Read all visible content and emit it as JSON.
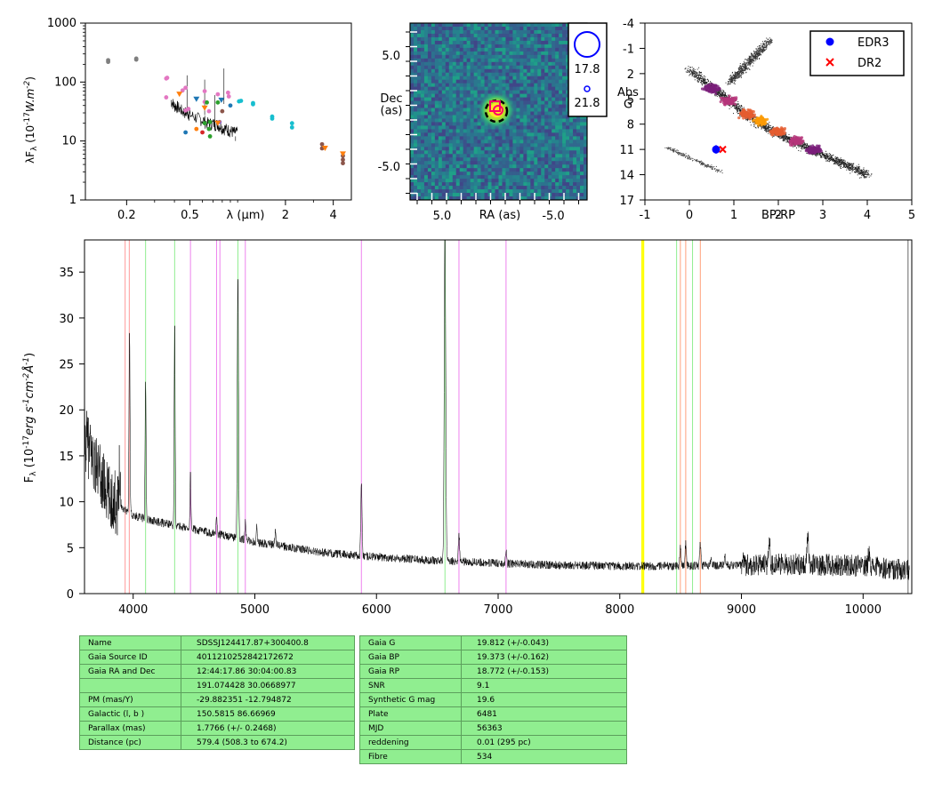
{
  "chart_data": [
    {
      "type": "scatter",
      "name": "sed",
      "xlabel": "λ (μm)",
      "ylabel": "λF_λ (10^-17 W.m^-2)",
      "xscale": "log",
      "yscale": "log",
      "xlim": [
        0.11,
        5.2
      ],
      "ylim": [
        1,
        1000
      ],
      "x_ticks": [
        0.2,
        0.5,
        2,
        4
      ],
      "y_ticks": [
        1,
        10,
        100,
        1000
      ],
      "points": [
        {
          "x": 0.153,
          "y": 220,
          "color": "#7f7f7f"
        },
        {
          "x": 0.153,
          "y": 235,
          "color": "#7f7f7f"
        },
        {
          "x": 0.23,
          "y": 240,
          "color": "#7f7f7f"
        },
        {
          "x": 0.23,
          "y": 250,
          "color": "#7f7f7f"
        },
        {
          "x": 0.355,
          "y": 115,
          "color": "#e377c2"
        },
        {
          "x": 0.355,
          "y": 55,
          "color": "#e377c2"
        },
        {
          "x": 0.36,
          "y": 118,
          "color": "#e377c2"
        },
        {
          "x": 0.45,
          "y": 72,
          "color": "#e377c2"
        },
        {
          "x": 0.47,
          "y": 80,
          "color": "#e377c2"
        },
        {
          "x": 0.47,
          "y": 33,
          "color": "#e377c2"
        },
        {
          "x": 0.49,
          "y": 35,
          "color": "#e377c2"
        },
        {
          "x": 0.62,
          "y": 70,
          "color": "#e377c2"
        },
        {
          "x": 0.62,
          "y": 46,
          "color": "#e377c2"
        },
        {
          "x": 0.66,
          "y": 32,
          "color": "#e377c2"
        },
        {
          "x": 0.75,
          "y": 62,
          "color": "#e377c2"
        },
        {
          "x": 0.87,
          "y": 66,
          "color": "#e377c2"
        },
        {
          "x": 0.88,
          "y": 57,
          "color": "#e377c2"
        },
        {
          "x": 0.47,
          "y": 14,
          "color": "#1f77b4"
        },
        {
          "x": 0.55,
          "y": 16,
          "color": "#ff7f0e"
        },
        {
          "x": 0.6,
          "y": 14,
          "color": "#d62728"
        },
        {
          "x": 0.62,
          "y": 20,
          "color": "#2ca02c"
        },
        {
          "x": 0.66,
          "y": 16,
          "color": "#2ca02c"
        },
        {
          "x": 0.67,
          "y": 12,
          "color": "#2ca02c"
        },
        {
          "x": 0.67,
          "y": 21,
          "color": "#2ca02c"
        },
        {
          "x": 0.64,
          "y": 45,
          "color": "#2ca02c"
        },
        {
          "x": 0.75,
          "y": 45,
          "color": "#2ca02c"
        },
        {
          "x": 0.77,
          "y": 21,
          "color": "#9467bd"
        },
        {
          "x": 0.8,
          "y": 32,
          "color": "#8c564b"
        },
        {
          "x": 0.9,
          "y": 40,
          "color": "#1f77b4"
        },
        {
          "x": 1.02,
          "y": 47,
          "color": "#17becf"
        },
        {
          "x": 1.05,
          "y": 48,
          "color": "#17becf"
        },
        {
          "x": 1.25,
          "y": 44,
          "color": "#17becf"
        },
        {
          "x": 1.25,
          "y": 42,
          "color": "#17becf"
        },
        {
          "x": 1.65,
          "y": 26,
          "color": "#17becf"
        },
        {
          "x": 1.65,
          "y": 24,
          "color": "#17becf"
        },
        {
          "x": 2.2,
          "y": 20,
          "color": "#17becf"
        },
        {
          "x": 2.2,
          "y": 17,
          "color": "#17becf"
        },
        {
          "x": 3.4,
          "y": 8.8,
          "color": "#8c564b"
        },
        {
          "x": 3.4,
          "y": 7.5,
          "color": "#8c564b"
        },
        {
          "x": 4.6,
          "y": 5.6,
          "color": "#8c564b"
        },
        {
          "x": 4.6,
          "y": 4.8,
          "color": "#8c564b"
        },
        {
          "x": 4.6,
          "y": 4.2,
          "color": "#8c564b"
        }
      ],
      "upper_limits": [
        {
          "x": 0.43,
          "y": 62,
          "color": "#ff7f0e"
        },
        {
          "x": 0.62,
          "y": 36,
          "color": "#ff7f0e"
        },
        {
          "x": 0.75,
          "y": 20,
          "color": "#ff7f0e"
        },
        {
          "x": 3.55,
          "y": 7.5,
          "color": "#ff7f0e"
        },
        {
          "x": 4.6,
          "y": 6,
          "color": "#ff7f0e"
        },
        {
          "x": 0.55,
          "y": 51,
          "color": "#1f77b4"
        },
        {
          "x": 0.79,
          "y": 49,
          "color": "#1f77b4"
        }
      ],
      "spectrum_overlay": {
        "x": [
          0.38,
          0.4,
          0.42,
          0.45,
          0.48,
          0.5,
          0.55,
          0.6,
          0.65,
          0.7,
          0.75,
          0.8,
          0.85,
          0.9,
          0.95,
          1.0
        ],
        "y": [
          48,
          40,
          38,
          32,
          30,
          28,
          25,
          23,
          20,
          20,
          19,
          17,
          16,
          15,
          14,
          14
        ]
      }
    },
    {
      "type": "heatmap",
      "name": "image",
      "xlabel": "RA (as)",
      "ylabel": "Dec\n(as)",
      "x_ticks": [
        "5.0",
        "-5.0"
      ],
      "y_ticks": [
        "5.0",
        "-5.0"
      ],
      "legend_labels": [
        "17.8",
        "21.8"
      ]
    },
    {
      "type": "scatter",
      "name": "cmd",
      "xlabel": "BP-RP",
      "ylabel": "Abs\nG",
      "xlim": [
        -1,
        5
      ],
      "ylim": [
        17,
        -4
      ],
      "x_ticks": [
        "-1",
        "0",
        "1",
        "2",
        "3",
        "4",
        "5"
      ],
      "y_ticks": [
        "-4",
        "-1",
        "2",
        "5",
        "8",
        "11",
        "14",
        "17"
      ],
      "legend": [
        "EDR3",
        "DR2"
      ],
      "legend_position": "top-right",
      "points": [
        {
          "series": "EDR3",
          "x": 0.6,
          "y": 11.0,
          "marker": "dot",
          "color": "#0000ff"
        },
        {
          "series": "DR2",
          "x": 0.75,
          "y": 11.0,
          "marker": "x",
          "color": "#ff0000"
        }
      ]
    },
    {
      "type": "line",
      "name": "spectrum",
      "xlabel": "",
      "ylabel": "F_λ (10^-17 erg s^-1 cm^-2 Å^-1)",
      "xlim": [
        3600,
        10400
      ],
      "ylim": [
        0,
        38.5
      ],
      "x_ticks": [
        4000,
        5000,
        6000,
        7000,
        8000,
        9000,
        10000
      ],
      "y_ticks": [
        0,
        5,
        10,
        15,
        20,
        25,
        30,
        35
      ],
      "continuum": [
        [
          3600,
          17
        ],
        [
          3800,
          10.5
        ],
        [
          4000,
          8.5
        ],
        [
          4200,
          7.8
        ],
        [
          4500,
          7.0
        ],
        [
          4800,
          6.2
        ],
        [
          5000,
          5.6
        ],
        [
          5300,
          5.0
        ],
        [
          5600,
          4.4
        ],
        [
          6000,
          4.0
        ],
        [
          6500,
          3.6
        ],
        [
          7000,
          3.3
        ],
        [
          7500,
          3.1
        ],
        [
          8000,
          3.0
        ],
        [
          8500,
          3.0
        ],
        [
          9000,
          3.1
        ],
        [
          9500,
          3.2
        ],
        [
          10000,
          3.0
        ],
        [
          10400,
          2.5
        ]
      ],
      "emission_lines": [
        {
          "x": 3889,
          "peak": 5,
          "w": 5
        },
        {
          "x": 3970,
          "peak": 20,
          "w": 4
        },
        {
          "x": 4102,
          "peak": 15,
          "w": 4
        },
        {
          "x": 4341,
          "peak": 22,
          "w": 4
        },
        {
          "x": 4471,
          "peak": 6,
          "w": 4
        },
        {
          "x": 4686,
          "peak": 2,
          "w": 4
        },
        {
          "x": 4861,
          "peak": 29,
          "w": 5
        },
        {
          "x": 4922,
          "peak": 2,
          "w": 4
        },
        {
          "x": 5016,
          "peak": 2,
          "w": 4
        },
        {
          "x": 5169,
          "peak": 1.5,
          "w": 5
        },
        {
          "x": 5876,
          "peak": 8,
          "w": 5
        },
        {
          "x": 6563,
          "peak": 37,
          "w": 6
        },
        {
          "x": 6678,
          "peak": 3,
          "w": 5
        },
        {
          "x": 7065,
          "peak": 1.5,
          "w": 5
        },
        {
          "x": 8498,
          "peak": 2,
          "w": 5
        },
        {
          "x": 8542,
          "peak": 2.5,
          "w": 5
        },
        {
          "x": 8662,
          "peak": 2.5,
          "w": 5
        },
        {
          "x": 8750,
          "peak": 1,
          "w": 5
        },
        {
          "x": 8863,
          "peak": 1,
          "w": 5
        },
        {
          "x": 9015,
          "peak": 1,
          "w": 5
        },
        {
          "x": 9229,
          "peak": 3,
          "w": 6
        },
        {
          "x": 9546,
          "peak": 3,
          "w": 6
        },
        {
          "x": 10049,
          "peak": 2,
          "w": 6
        }
      ],
      "line_markers": [
        {
          "x": 3934,
          "color": "#ff9999"
        },
        {
          "x": 3968,
          "color": "#ff9999"
        },
        {
          "x": 4102,
          "color": "#90ee90"
        },
        {
          "x": 4341,
          "color": "#90ee90"
        },
        {
          "x": 4471,
          "color": "#ee82ee"
        },
        {
          "x": 4686,
          "color": "#ee82ee"
        },
        {
          "x": 4713,
          "color": "#ee82ee"
        },
        {
          "x": 4861,
          "color": "#90ee90"
        },
        {
          "x": 4922,
          "color": "#ee82ee"
        },
        {
          "x": 5876,
          "color": "#ee82ee"
        },
        {
          "x": 6563,
          "color": "#90ee90"
        },
        {
          "x": 6678,
          "color": "#ee82ee"
        },
        {
          "x": 7065,
          "color": "#ee82ee"
        },
        {
          "x": 8183,
          "color": "#ffff00"
        },
        {
          "x": 8195,
          "color": "#ffff00"
        },
        {
          "x": 8467,
          "color": "#90ee90"
        },
        {
          "x": 8498,
          "color": "#ffa07a"
        },
        {
          "x": 8542,
          "color": "#ffa07a"
        },
        {
          "x": 8598,
          "color": "#90ee90"
        },
        {
          "x": 8662,
          "color": "#ffa07a"
        }
      ]
    }
  ],
  "info_table_left": [
    {
      "key": "Name",
      "value": "SDSSJ124417.87+300400.8"
    },
    {
      "key": "Gaia Source ID",
      "value": "4011210252842172672"
    },
    {
      "key": "Gaia RA and Dec",
      "value": "12:44:17.86    30:04:00.83"
    },
    {
      "key": "",
      "value": "191.074428    30.0668977"
    },
    {
      "key": "PM (mas/Y)",
      "value": "-29.882351    -12.794872"
    },
    {
      "key": "Galactic (l, b )",
      "value": "150.5815    86.66969"
    },
    {
      "key": "Parallax (mas)",
      "value": "1.7766 (+/- 0.2468)"
    },
    {
      "key": "Distance (pc)",
      "value": "579.4 (508.3 to 674.2)"
    }
  ],
  "info_table_right": [
    {
      "key": "Gaia G",
      "value": "19.812 (+/-0.043)"
    },
    {
      "key": "Gaia BP",
      "value": "19.373 (+/-0.162)"
    },
    {
      "key": "Gaia RP",
      "value": "18.772 (+/-0.153)"
    },
    {
      "key": "SNR",
      "value": "9.1"
    },
    {
      "key": "Synthetic G mag",
      "value": "19.6"
    },
    {
      "key": "Plate",
      "value": "6481"
    },
    {
      "key": "MJD",
      "value": "56363"
    },
    {
      "key": "reddening",
      "value": "0.01 (295 pc)"
    },
    {
      "key": "Fibre",
      "value": "534"
    }
  ]
}
